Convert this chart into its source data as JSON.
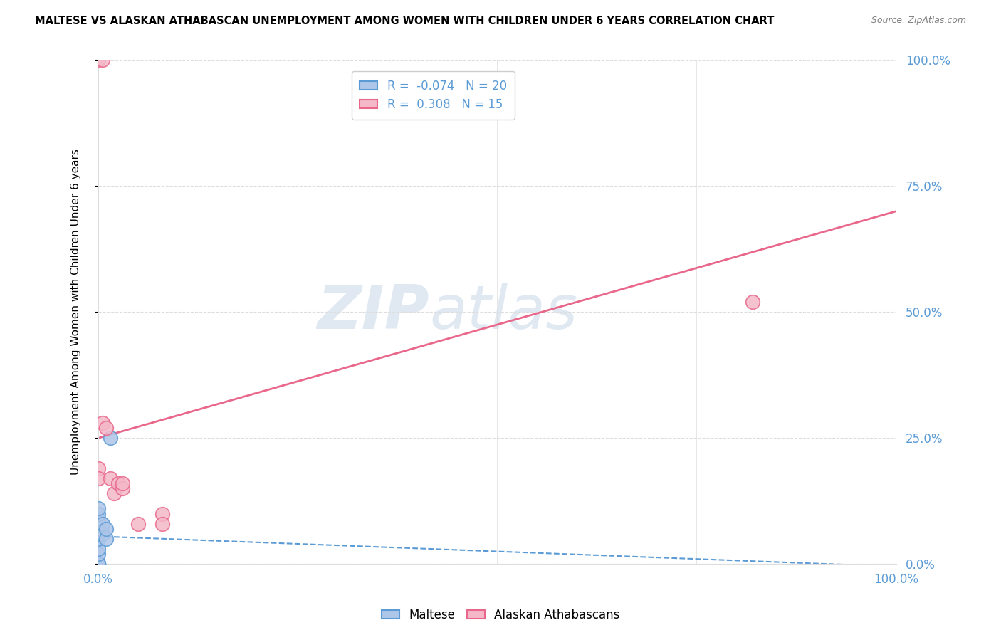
{
  "title": "MALTESE VS ALASKAN ATHABASCAN UNEMPLOYMENT AMONG WOMEN WITH CHILDREN UNDER 6 YEARS CORRELATION CHART",
  "source": "Source: ZipAtlas.com",
  "ylabel": "Unemployment Among Women with Children Under 6 years",
  "xlim": [
    0,
    1
  ],
  "ylim": [
    0,
    1
  ],
  "ytick_labels": [
    "0.0%",
    "25.0%",
    "50.0%",
    "75.0%",
    "100.0%"
  ],
  "ytick_positions": [
    0,
    0.25,
    0.5,
    0.75,
    1.0
  ],
  "maltese_x": [
    0.0,
    0.0,
    0.0,
    0.0,
    0.0,
    0.0,
    0.0,
    0.0,
    0.0,
    0.0,
    0.0,
    0.0,
    0.0,
    0.0,
    0.0,
    0.005,
    0.005,
    0.01,
    0.01,
    0.015
  ],
  "maltese_y": [
    0.0,
    0.0,
    0.0,
    0.0,
    0.0,
    0.02,
    0.03,
    0.05,
    0.06,
    0.07,
    0.07,
    0.08,
    0.09,
    0.1,
    0.11,
    0.06,
    0.08,
    0.05,
    0.07,
    0.25
  ],
  "athabascan_x": [
    0.0,
    0.0,
    0.0,
    0.005,
    0.005,
    0.01,
    0.015,
    0.02,
    0.025,
    0.03,
    0.03,
    0.05,
    0.08,
    0.08,
    0.82
  ],
  "athabascan_y": [
    0.19,
    0.17,
    1.0,
    0.28,
    1.0,
    0.27,
    0.17,
    0.14,
    0.16,
    0.15,
    0.16,
    0.08,
    0.1,
    0.08,
    0.52
  ],
  "maltese_color": "#aec6e8",
  "maltese_edge_color": "#5b9bd5",
  "athabascan_color": "#f4b8c8",
  "athabascan_edge_color": "#e8678a",
  "trend_blue_color": "#5b9bd5",
  "trend_pink_color": "#e8678a",
  "R_maltese": -0.074,
  "N_maltese": 20,
  "R_athabascan": 0.308,
  "N_athabascan": 15,
  "legend_maltese_label": "Maltese",
  "legend_athabascan_label": "Alaskan Athabascans",
  "watermark_zip": "ZIP",
  "watermark_atlas": "atlas",
  "background_color": "#ffffff",
  "grid_color": "#dddddd",
  "axis_label_color": "#5b9bd5",
  "marker_size": 200
}
